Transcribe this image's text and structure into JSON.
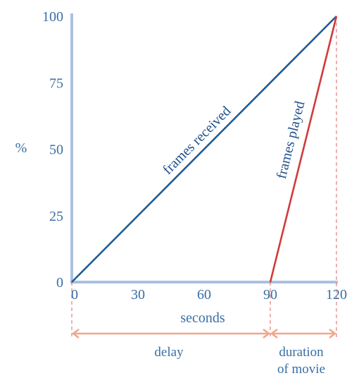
{
  "chart_data": {
    "type": "line",
    "title": "",
    "xlabel": "seconds",
    "ylabel": "%",
    "xlim": [
      0,
      120
    ],
    "ylim": [
      0,
      100
    ],
    "x_ticks": [
      "0",
      "30",
      "60",
      "90",
      "120"
    ],
    "y_ticks": [
      "0",
      "25",
      "50",
      "75",
      "100"
    ],
    "series": [
      {
        "name": "frames received",
        "color": "#1f5a96",
        "x": [
          0,
          120
        ],
        "y": [
          0,
          100
        ]
      },
      {
        "name": "frames played",
        "color": "#d23a3a",
        "x": [
          90,
          120
        ],
        "y": [
          0,
          100
        ]
      }
    ],
    "annotations": {
      "delay": "delay",
      "duration_line1": "duration",
      "duration_line2": "of movie"
    },
    "colors": {
      "axis": "#a9c1df",
      "text": "#3a6ea5",
      "bracket": "#f0a78c",
      "guide": "#e06060"
    }
  }
}
